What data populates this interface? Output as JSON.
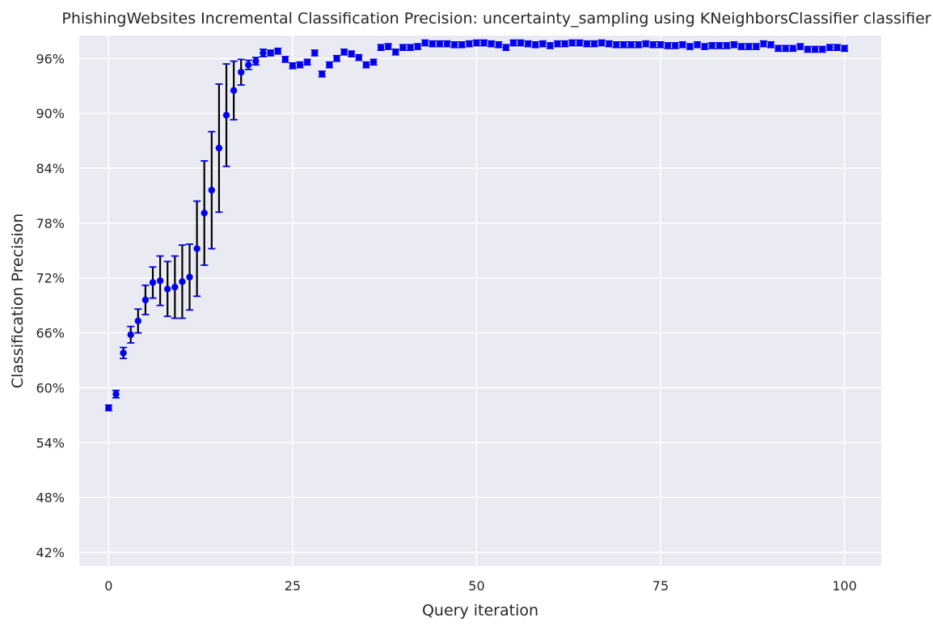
{
  "chart_data": {
    "type": "scatter",
    "title": "PhishingWebsites Incremental Classification Precision: uncertainty_sampling using KNeighborsClassifier classifier",
    "xlabel": "Query iteration",
    "ylabel": "Classification Precision",
    "xlim": [
      -4,
      105
    ],
    "ylim": [
      40.5,
      98.5
    ],
    "xticks": [
      0,
      25,
      50,
      75,
      100
    ],
    "yticks": [
      42,
      48,
      54,
      60,
      66,
      72,
      78,
      84,
      90,
      96
    ],
    "xtick_labels": [
      "0",
      "25",
      "50",
      "75",
      "100"
    ],
    "ytick_labels": [
      "42%",
      "48%",
      "54%",
      "60%",
      "66%",
      "72%",
      "78%",
      "84%",
      "90%",
      "96%"
    ],
    "grid": true,
    "background": "#eaeaf2",
    "marker_color": "#0000ee",
    "errorbar_color": "#000000",
    "cap_color": "#0000ee",
    "series": [
      {
        "x": [
          0,
          1,
          2,
          3,
          4,
          5,
          6,
          7,
          8,
          9,
          10,
          11,
          12,
          13,
          14,
          15,
          16,
          17,
          18,
          19,
          20,
          21,
          22,
          23,
          24,
          25,
          26,
          27,
          28,
          29,
          30,
          31,
          32,
          33,
          34,
          35,
          36,
          37,
          38,
          39,
          40,
          41,
          42,
          43,
          44,
          45,
          46,
          47,
          48,
          49,
          50,
          51,
          52,
          53,
          54,
          55,
          56,
          57,
          58,
          59,
          60,
          61,
          62,
          63,
          64,
          65,
          66,
          67,
          68,
          69,
          70,
          71,
          72,
          73,
          74,
          75,
          76,
          77,
          78,
          79,
          80,
          81,
          82,
          83,
          84,
          85,
          86,
          87,
          88,
          89,
          90,
          91,
          92,
          93,
          94,
          95,
          96,
          97,
          98,
          99,
          100
        ],
        "y": [
          57.8,
          59.3,
          63.8,
          65.8,
          67.3,
          69.6,
          71.5,
          71.7,
          70.8,
          71.0,
          71.6,
          72.1,
          75.2,
          79.1,
          81.6,
          86.2,
          89.8,
          92.5,
          94.5,
          95.3,
          95.7,
          96.6,
          96.6,
          96.8,
          95.9,
          95.2,
          95.3,
          95.6,
          96.6,
          94.3,
          95.3,
          96.0,
          96.7,
          96.5,
          96.1,
          95.3,
          95.6,
          97.2,
          97.3,
          96.7,
          97.2,
          97.2,
          97.3,
          97.7,
          97.6,
          97.6,
          97.6,
          97.5,
          97.5,
          97.6,
          97.7,
          97.7,
          97.6,
          97.5,
          97.2,
          97.7,
          97.7,
          97.6,
          97.5,
          97.6,
          97.4,
          97.6,
          97.6,
          97.7,
          97.7,
          97.6,
          97.6,
          97.7,
          97.6,
          97.5,
          97.5,
          97.5,
          97.5,
          97.6,
          97.5,
          97.5,
          97.4,
          97.4,
          97.5,
          97.3,
          97.5,
          97.3,
          97.4,
          97.4,
          97.4,
          97.5,
          97.3,
          97.3,
          97.3,
          97.6,
          97.5,
          97.1,
          97.1,
          97.1,
          97.3,
          97.0,
          97.0,
          97.0,
          97.2,
          97.2,
          97.1
        ],
        "err": [
          0.3,
          0.4,
          0.6,
          0.9,
          1.3,
          1.6,
          1.7,
          2.7,
          3.0,
          3.4,
          4.0,
          3.6,
          5.2,
          5.7,
          6.4,
          7.0,
          5.6,
          3.2,
          1.4,
          0.5,
          0.4,
          0.4,
          0.3,
          0.3,
          0.3,
          0.3,
          0.3,
          0.3,
          0.3,
          0.3,
          0.3,
          0.3,
          0.3,
          0.3,
          0.3,
          0.3,
          0.3,
          0.3,
          0.3,
          0.3,
          0.3,
          0.3,
          0.3,
          0.3,
          0.3,
          0.3,
          0.3,
          0.3,
          0.3,
          0.3,
          0.3,
          0.3,
          0.3,
          0.3,
          0.3,
          0.3,
          0.3,
          0.3,
          0.3,
          0.3,
          0.3,
          0.3,
          0.3,
          0.3,
          0.3,
          0.3,
          0.3,
          0.3,
          0.3,
          0.3,
          0.3,
          0.3,
          0.3,
          0.3,
          0.3,
          0.3,
          0.3,
          0.3,
          0.3,
          0.3,
          0.3,
          0.3,
          0.3,
          0.3,
          0.3,
          0.3,
          0.3,
          0.3,
          0.3,
          0.3,
          0.3,
          0.3,
          0.3,
          0.3,
          0.3,
          0.3,
          0.3,
          0.3,
          0.3,
          0.3,
          0.3
        ]
      }
    ]
  }
}
